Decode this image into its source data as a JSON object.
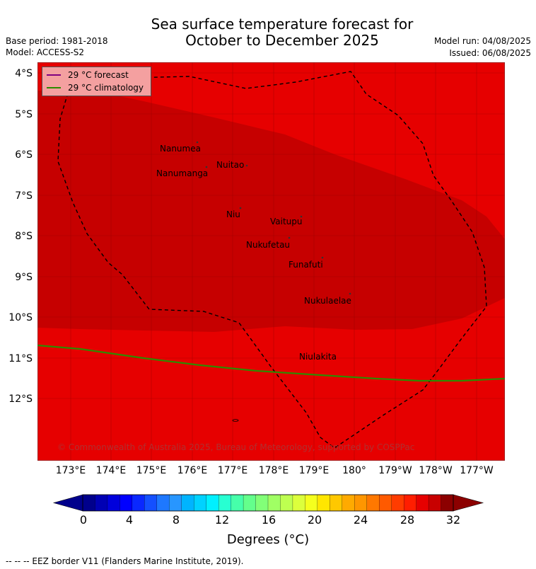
{
  "title": {
    "line1": "Sea surface temperature forecast for",
    "line2": "October to December 2025"
  },
  "meta": {
    "base_period": "Base period: 1981-2018",
    "model": "Model: ACCESS-S2",
    "model_run": "Model run: 04/08/2025",
    "issued": "Issued: 06/08/2025"
  },
  "legend": {
    "forecast": "29 °C  forecast",
    "climatology": "29 °C  climatology",
    "forecast_color": "#800080",
    "climatology_color": "#2e8b00"
  },
  "map": {
    "lat_labels": [
      "4°S",
      "5°S",
      "6°S",
      "7°S",
      "8°S",
      "9°S",
      "10°S",
      "11°S",
      "12°S"
    ],
    "lon_labels": [
      "173°E",
      "174°E",
      "175°E",
      "176°E",
      "177°E",
      "178°E",
      "179°E",
      "180°",
      "179°W",
      "178°W",
      "177°W"
    ],
    "background_color": "#e60000",
    "warm_pool_color": "#c60000",
    "islands": [
      {
        "name": "Nanumea",
        "lat": -5.67,
        "lon": 176.1
      },
      {
        "name": "Nuitao",
        "lat": -6.3,
        "lon": 177.3
      },
      {
        "name": "Nanumanga",
        "lat": -6.3,
        "lon": 176.3
      },
      {
        "name": "Niu",
        "lat": -7.3,
        "lon": 177.15
      },
      {
        "name": "Vaitupu",
        "lat": -7.5,
        "lon": 178.7
      },
      {
        "name": "Nukufetau",
        "lat": -8.0,
        "lon": 178.4
      },
      {
        "name": "Funafuti",
        "lat": -8.5,
        "lon": 179.2
      },
      {
        "name": "Nukulaelae",
        "lat": -9.4,
        "lon": 179.85
      },
      {
        "name": "Niulakita",
        "lat": -10.8,
        "lon": 179.5
      }
    ],
    "copyright": "© Commonwealth of Australia 2025, Bureau of Meteorology, supported by COSPPac"
  },
  "colorbar": {
    "min": 0,
    "max": 32,
    "ticks": [
      "0",
      "4",
      "8",
      "12",
      "16",
      "20",
      "24",
      "28",
      "32"
    ],
    "label": "Degrees (°C)",
    "colors": [
      "#00008c",
      "#0000b4",
      "#0000dc",
      "#0000ff",
      "#0a28ff",
      "#1450ff",
      "#1e78ff",
      "#2896ff",
      "#00b4ff",
      "#00d2ff",
      "#00f0ff",
      "#28ffd2",
      "#46ffaa",
      "#64ff8c",
      "#82ff78",
      "#a0ff64",
      "#beff50",
      "#dcff3c",
      "#f5ff1e",
      "#ffe600",
      "#ffc800",
      "#ffaa00",
      "#ff9600",
      "#ff7800",
      "#ff5a00",
      "#ff3c00",
      "#ff1e00",
      "#e60000",
      "#c80000",
      "#8c0000"
    ],
    "under_color": "#00008c",
    "over_color": "#8c0000"
  },
  "footnote": "--  --  -- EEZ border V11 (Flanders Marine Institute, 2019)."
}
